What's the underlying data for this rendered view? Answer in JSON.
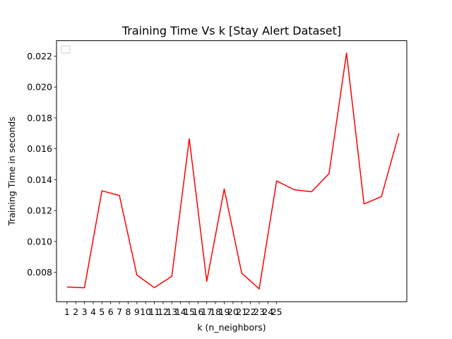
{
  "chart_data": {
    "type": "line",
    "title": "Training Time Vs k [Stay Alert Dataset]",
    "xlabel": "k (n_neighbors)",
    "ylabel": "Training Time in seconds",
    "xlim": [
      -0.2,
      39.9
    ],
    "ylim": [
      0.0061,
      0.023
    ],
    "xticks": [
      "1",
      "2",
      "3",
      "4",
      "5",
      "6",
      "7",
      "8",
      "9",
      "10",
      "11",
      "12",
      "13",
      "14",
      "15",
      "16",
      "17",
      "18",
      "19",
      "20",
      "21",
      "22",
      "23",
      "24",
      "25"
    ],
    "yticks": [
      "0.008",
      "0.010",
      "0.012",
      "0.014",
      "0.016",
      "0.018",
      "0.020",
      "0.022"
    ],
    "legend": "top-left, empty box",
    "grid": false,
    "series": [
      {
        "color": "#ff0000",
        "x": [
          1,
          3,
          5,
          7,
          9,
          11,
          13,
          15,
          17,
          19,
          21,
          23,
          25,
          27,
          29,
          31,
          33,
          35,
          37,
          39
        ],
        "y": [
          0.00705,
          0.007,
          0.01328,
          0.01298,
          0.00783,
          0.00701,
          0.00775,
          0.01665,
          0.00742,
          0.0134,
          0.00795,
          0.00693,
          0.01392,
          0.01335,
          0.01322,
          0.0144,
          0.0222,
          0.01243,
          0.01291,
          0.017
        ]
      }
    ]
  }
}
